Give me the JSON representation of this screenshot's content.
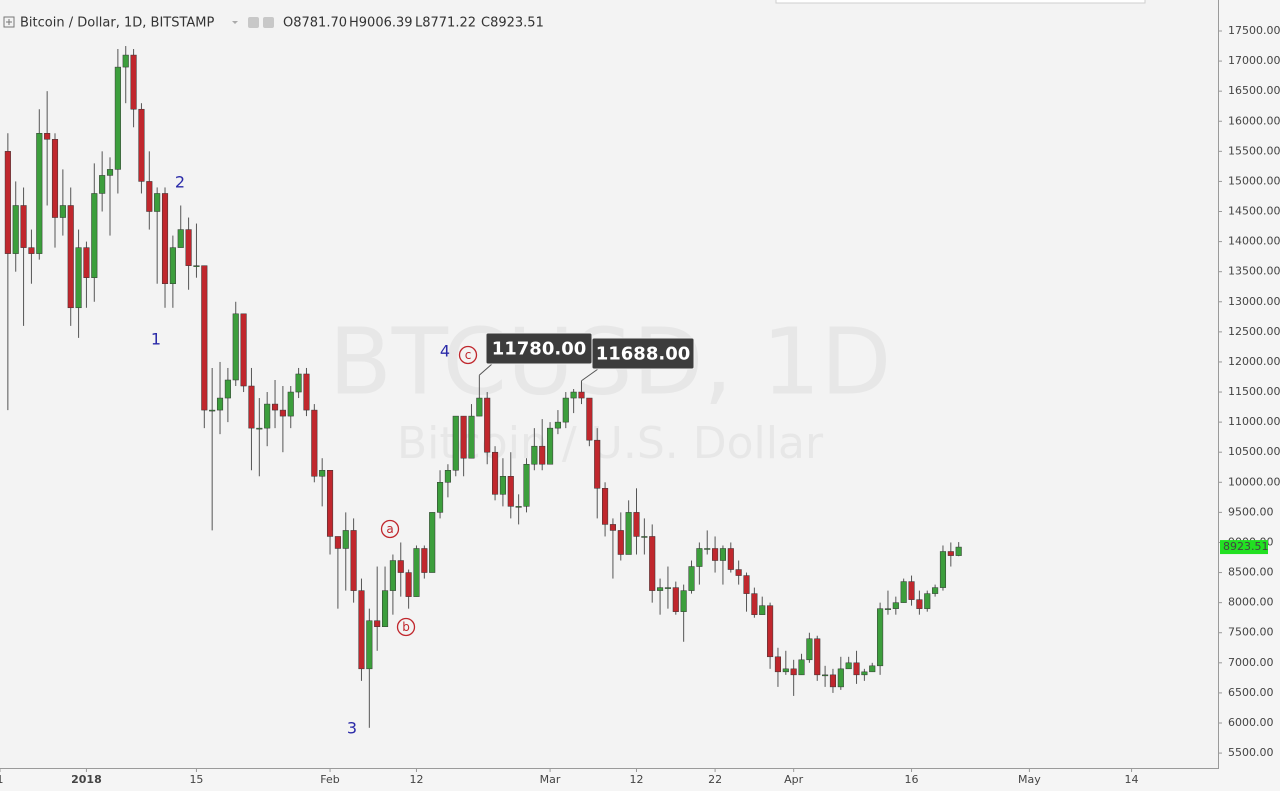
{
  "chart_data": {
    "type": "candlestick",
    "title": "Bitcoin / Dollar, 1D, BITSTAMP",
    "ohlc_legend": [
      "O8781.70",
      "H9006.39",
      "L8771.22",
      "C8923.51"
    ],
    "watermark": "BTCUSD, 1D",
    "watermark_subtitle": "Bitcoin / U.S. Dollar",
    "wave_labels": [
      "1",
      "2",
      "3",
      "4"
    ],
    "correction_labels": [
      "a",
      "b",
      "c"
    ],
    "annotations": [
      {
        "text": "11780.00",
        "x": "2018-02-20",
        "y": 11780
      },
      {
        "text": "11688.00",
        "x": "2018-03-05",
        "y": 11688
      }
    ],
    "last_price_label": "8923.51",
    "up_color": "#3c9e3c",
    "down_color": "#c0272d",
    "last_price_color": "#22e022",
    "xlim": [
      "2017-12-21",
      "2018-05-25"
    ],
    "ylim": [
      5252,
      18015
    ],
    "xticks": [
      {
        "value": "2017-12-21",
        "label": "1"
      },
      {
        "value": "2018-01-01",
        "label": "2018"
      },
      {
        "value": "2018-01-15",
        "label": "15"
      },
      {
        "value": "2018-02-01",
        "label": "Feb"
      },
      {
        "value": "2018-02-12",
        "label": "12"
      },
      {
        "value": "2018-03-01",
        "label": "Mar"
      },
      {
        "value": "2018-03-12",
        "label": "12"
      },
      {
        "value": "2018-03-22",
        "label": "22"
      },
      {
        "value": "2018-04-01",
        "label": "Apr"
      },
      {
        "value": "2018-04-16",
        "label": "16"
      },
      {
        "value": "2018-05-01",
        "label": "May"
      },
      {
        "value": "2018-05-14",
        "label": "14"
      }
    ],
    "yticks": [
      {
        "value": 17500,
        "label": "17500.00"
      },
      {
        "value": 17000,
        "label": "17000.00"
      },
      {
        "value": 16500,
        "label": "16500.00"
      },
      {
        "value": 16000,
        "label": "16000.00"
      },
      {
        "value": 15500,
        "label": "15500.00"
      },
      {
        "value": 15000,
        "label": "15000.00"
      },
      {
        "value": 14500,
        "label": "14500.00"
      },
      {
        "value": 14000,
        "label": "14000.00"
      },
      {
        "value": 13500,
        "label": "13500.00"
      },
      {
        "value": 13000,
        "label": "13000.00"
      },
      {
        "value": 12500,
        "label": "12500.00"
      },
      {
        "value": 12000,
        "label": "12000.00"
      },
      {
        "value": 11500,
        "label": "11500.00"
      },
      {
        "value": 11000,
        "label": "11000.00"
      },
      {
        "value": 10500,
        "label": "10500.00"
      },
      {
        "value": 10000,
        "label": "10000.00"
      },
      {
        "value": 9500,
        "label": "9500.00"
      },
      {
        "value": 9000,
        "label": "9000.00"
      },
      {
        "value": 8500,
        "label": "8500.00"
      },
      {
        "value": 8000,
        "label": "8000.00"
      },
      {
        "value": 7500,
        "label": "7500.00"
      },
      {
        "value": 7000,
        "label": "7000.00"
      },
      {
        "value": 6500,
        "label": "6500.00"
      },
      {
        "value": 6000,
        "label": "6000.00"
      },
      {
        "value": 5500,
        "label": "5500.00"
      }
    ],
    "x": [
      "2017-12-22",
      "2017-12-23",
      "2017-12-24",
      "2017-12-25",
      "2017-12-26",
      "2017-12-27",
      "2017-12-28",
      "2017-12-29",
      "2017-12-30",
      "2017-12-31",
      "2018-01-01",
      "2018-01-02",
      "2018-01-03",
      "2018-01-04",
      "2018-01-05",
      "2018-01-06",
      "2018-01-07",
      "2018-01-08",
      "2018-01-09",
      "2018-01-10",
      "2018-01-11",
      "2018-01-12",
      "2018-01-13",
      "2018-01-14",
      "2018-01-15",
      "2018-01-16",
      "2018-01-17",
      "2018-01-18",
      "2018-01-19",
      "2018-01-20",
      "2018-01-21",
      "2018-01-22",
      "2018-01-23",
      "2018-01-24",
      "2018-01-25",
      "2018-01-26",
      "2018-01-27",
      "2018-01-28",
      "2018-01-29",
      "2018-01-30",
      "2018-01-31",
      "2018-02-01",
      "2018-02-02",
      "2018-02-03",
      "2018-02-04",
      "2018-02-05",
      "2018-02-06",
      "2018-02-07",
      "2018-02-08",
      "2018-02-09",
      "2018-02-10",
      "2018-02-11",
      "2018-02-12",
      "2018-02-13",
      "2018-02-14",
      "2018-02-15",
      "2018-02-16",
      "2018-02-17",
      "2018-02-18",
      "2018-02-19",
      "2018-02-20",
      "2018-02-21",
      "2018-02-22",
      "2018-02-23",
      "2018-02-24",
      "2018-02-25",
      "2018-02-26",
      "2018-02-27",
      "2018-02-28",
      "2018-03-01",
      "2018-03-02",
      "2018-03-03",
      "2018-03-04",
      "2018-03-05",
      "2018-03-06",
      "2018-03-07",
      "2018-03-08",
      "2018-03-09",
      "2018-03-10",
      "2018-03-11",
      "2018-03-12",
      "2018-03-13",
      "2018-03-14",
      "2018-03-15",
      "2018-03-16",
      "2018-03-17",
      "2018-03-18",
      "2018-03-19",
      "2018-03-20",
      "2018-03-21",
      "2018-03-22",
      "2018-03-23",
      "2018-03-24",
      "2018-03-25",
      "2018-03-26",
      "2018-03-27",
      "2018-03-28",
      "2018-03-29",
      "2018-03-30",
      "2018-03-31",
      "2018-04-01",
      "2018-04-02",
      "2018-04-03",
      "2018-04-04",
      "2018-04-05",
      "2018-04-06",
      "2018-04-07",
      "2018-04-08",
      "2018-04-09",
      "2018-04-10",
      "2018-04-11",
      "2018-04-12",
      "2018-04-13",
      "2018-04-14",
      "2018-04-15",
      "2018-04-16",
      "2018-04-17",
      "2018-04-18",
      "2018-04-19",
      "2018-04-20",
      "2018-04-21",
      "2018-04-22"
    ],
    "open": [
      15500,
      13800,
      14600,
      13900,
      13800,
      15800,
      15700,
      14400,
      14600,
      12900,
      13900,
      13400,
      14800,
      15100,
      15200,
      16900,
      17100,
      16200,
      15000,
      14500,
      14800,
      13300,
      13900,
      14200,
      13600,
      13600,
      11200,
      11200,
      11400,
      11700,
      12800,
      11600,
      10900,
      10900,
      11300,
      11200,
      11100,
      11500,
      11800,
      11200,
      10100,
      10200,
      9100,
      8900,
      9200,
      8200,
      6900,
      7700,
      7600,
      8200,
      8700,
      8500,
      8100,
      8900,
      8500,
      9500,
      10000,
      10200,
      11100,
      10400,
      11100,
      11400,
      10500,
      9800,
      10100,
      9600,
      9600,
      10300,
      10600,
      10300,
      10900,
      11000,
      11400,
      11500,
      11400,
      10700,
      9900,
      9300,
      9200,
      8800,
      9500,
      9100,
      9100,
      8200,
      8250,
      8250,
      7850,
      8200,
      8600,
      8900,
      8900,
      8700,
      8900,
      8550,
      8450,
      8150,
      7800,
      7950,
      7100,
      6850,
      6900,
      6800,
      7050,
      7400,
      6800,
      6800,
      6600,
      6900,
      7000,
      6800,
      6850,
      6950,
      7900,
      7900,
      8000,
      8350,
      8050,
      7900,
      8150,
      8250,
      8850,
      8781.7
    ],
    "high": [
      15800,
      15000,
      14900,
      14200,
      16200,
      16500,
      15800,
      15200,
      14900,
      14200,
      14000,
      15300,
      15500,
      15400,
      17200,
      17250,
      17200,
      16300,
      15500,
      14900,
      14900,
      14100,
      14600,
      14400,
      14300,
      13600,
      11900,
      12000,
      11900,
      13000,
      12800,
      11900,
      11400,
      11500,
      11700,
      11600,
      11600,
      11900,
      11900,
      11300,
      10400,
      10200,
      9100,
      9500,
      9400,
      8400,
      7900,
      8600,
      8600,
      8800,
      9000,
      8550,
      8950,
      8950,
      9500,
      10200,
      10300,
      11100,
      11100,
      11300,
      11780,
      11500,
      10600,
      10400,
      10500,
      9800,
      10400,
      10900,
      11050,
      11000,
      11200,
      11500,
      11550,
      11688,
      11400,
      10900,
      10000,
      9400,
      9500,
      9700,
      9900,
      9400,
      9300,
      8400,
      8600,
      8350,
      8300,
      8700,
      9000,
      9200,
      9100,
      8950,
      9000,
      8700,
      8500,
      8250,
      8100,
      8000,
      7250,
      7200,
      7050,
      7150,
      7500,
      7450,
      6950,
      6900,
      7100,
      7100,
      7200,
      6900,
      7000,
      8000,
      8200,
      8100,
      8400,
      8450,
      8200,
      8200,
      8300,
      8950,
      9000,
      9006.39
    ],
    "low": [
      11200,
      13500,
      12600,
      13300,
      13700,
      14600,
      13900,
      14100,
      12600,
      12400,
      12900,
      13000,
      14500,
      14100,
      14800,
      16300,
      15900,
      14800,
      14200,
      13300,
      12900,
      12900,
      13900,
      13200,
      13400,
      10900,
      9200,
      10800,
      11000,
      11600,
      11500,
      10200,
      10100,
      10600,
      10900,
      10500,
      10900,
      11400,
      11100,
      10000,
      9600,
      8800,
      7900,
      8200,
      8000,
      6700,
      5920,
      7200,
      7600,
      7800,
      8100,
      7900,
      8100,
      8400,
      8500,
      9400,
      9750,
      10100,
      10100,
      10400,
      11100,
      10300,
      9700,
      9600,
      9400,
      9300,
      9500,
      10200,
      10200,
      10300,
      10800,
      10900,
      11150,
      11300,
      10600,
      9400,
      9100,
      8400,
      8700,
      8800,
      8800,
      8800,
      8000,
      7800,
      7900,
      7800,
      7350,
      8150,
      8300,
      8800,
      8500,
      8300,
      8500,
      8300,
      7850,
      7750,
      7800,
      6900,
      6600,
      6800,
      6450,
      6800,
      7000,
      6700,
      6600,
      6500,
      6550,
      6900,
      6650,
      6700,
      6850,
      6800,
      7800,
      7800,
      8000,
      7950,
      7800,
      7850,
      8100,
      8200,
      8600,
      8771.22
    ],
    "close": [
      13800,
      14600,
      13900,
      13800,
      15800,
      15700,
      14400,
      14600,
      12900,
      13900,
      13400,
      14800,
      15100,
      15200,
      16900,
      17100,
      16200,
      15000,
      14500,
      14800,
      13300,
      13900,
      14200,
      13600,
      13600,
      11200,
      11200,
      11400,
      11700,
      12800,
      11600,
      10900,
      10900,
      11300,
      11200,
      11100,
      11500,
      11800,
      11200,
      10100,
      10200,
      9100,
      8900,
      9200,
      8200,
      6900,
      7700,
      7600,
      8200,
      8700,
      8500,
      8100,
      8900,
      8500,
      9500,
      10000,
      10200,
      11100,
      10400,
      11100,
      11400,
      10500,
      9800,
      10100,
      9600,
      9600,
      10300,
      10600,
      10300,
      10900,
      11000,
      11400,
      11500,
      11400,
      10700,
      9900,
      9300,
      9200,
      8800,
      9500,
      9100,
      9100,
      8200,
      8250,
      8250,
      7850,
      8200,
      8600,
      8900,
      8900,
      8700,
      8900,
      8550,
      8450,
      8150,
      7800,
      7950,
      7100,
      6850,
      6900,
      6800,
      7050,
      7400,
      6800,
      6800,
      6600,
      6900,
      7000,
      6800,
      6850,
      6950,
      7900,
      7900,
      8000,
      8350,
      8050,
      7900,
      8150,
      8250,
      8850,
      8781.7,
      8923.51
    ]
  }
}
